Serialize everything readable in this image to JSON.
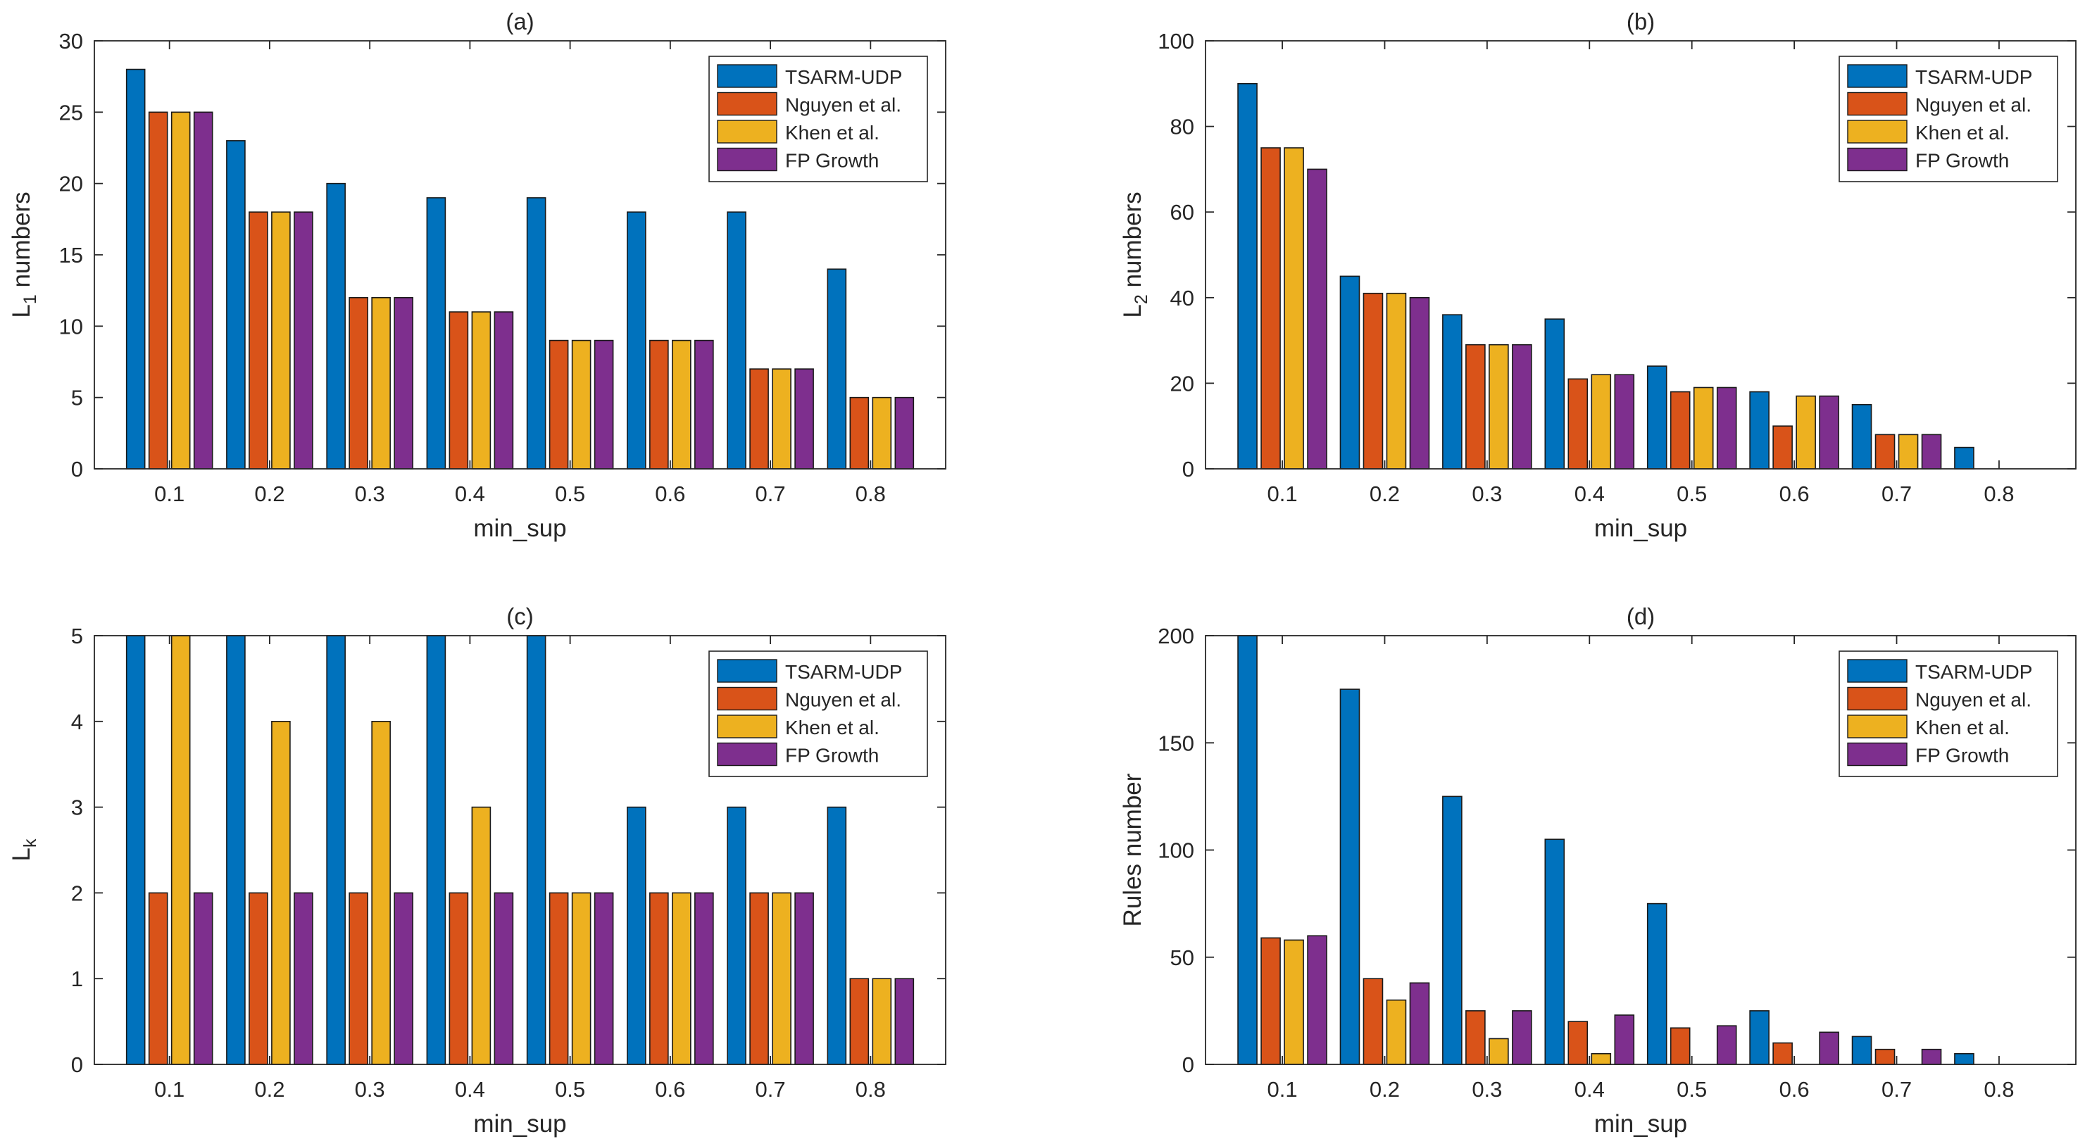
{
  "colors": {
    "tsarm": "#0072BD",
    "nguyen": "#D95319",
    "khen": "#EDB120",
    "fpg": "#7E2F8E"
  },
  "chart_data": [
    {
      "type": "bar",
      "title": "(a)",
      "xlabel": "min_sup",
      "ylabel_main": "L",
      "ylabel_sub": "1",
      "ylabel_rest": " numbers",
      "ylim": [
        0,
        30
      ],
      "yticks": [
        0,
        5,
        10,
        15,
        20,
        25,
        30
      ],
      "legend_position": "top-right",
      "categories": [
        "0.1",
        "0.2",
        "0.3",
        "0.4",
        "0.5",
        "0.6",
        "0.7",
        "0.8"
      ],
      "series": [
        {
          "name": "TSARM-UDP",
          "values": [
            28,
            23,
            20,
            19,
            19,
            18,
            18,
            14
          ]
        },
        {
          "name": "Nguyen et al.",
          "values": [
            25,
            18,
            12,
            11,
            9,
            9,
            7,
            5
          ]
        },
        {
          "name": "Khen et al.",
          "values": [
            25,
            18,
            12,
            11,
            9,
            9,
            7,
            5
          ]
        },
        {
          "name": "FP Growth",
          "values": [
            25,
            18,
            12,
            11,
            9,
            9,
            7,
            5
          ]
        }
      ]
    },
    {
      "type": "bar",
      "title": "(b)",
      "xlabel": "min_sup",
      "ylabel_main": "L",
      "ylabel_sub": "2",
      "ylabel_rest": " numbers",
      "ylim": [
        0,
        100
      ],
      "yticks": [
        0,
        20,
        40,
        60,
        80,
        100
      ],
      "legend_position": "top-right",
      "categories": [
        "0.1",
        "0.2",
        "0.3",
        "0.4",
        "0.5",
        "0.6",
        "0.7",
        "0.8"
      ],
      "series": [
        {
          "name": "TSARM-UDP",
          "values": [
            90,
            45,
            36,
            35,
            24,
            18,
            15,
            5
          ]
        },
        {
          "name": "Nguyen et al.",
          "values": [
            75,
            41,
            29,
            21,
            18,
            10,
            8,
            0
          ]
        },
        {
          "name": "Khen et al.",
          "values": [
            75,
            41,
            29,
            22,
            19,
            17,
            8,
            0
          ]
        },
        {
          "name": "FP Growth",
          "values": [
            70,
            40,
            29,
            22,
            19,
            17,
            8,
            0
          ]
        }
      ]
    },
    {
      "type": "bar",
      "title": "(c)",
      "xlabel": "min_sup",
      "ylabel_main": "L",
      "ylabel_sub": "k",
      "ylabel_rest": "",
      "ylim": [
        0,
        5
      ],
      "yticks": [
        0,
        1,
        2,
        3,
        4,
        5
      ],
      "legend_position": "top-right",
      "categories": [
        "0.1",
        "0.2",
        "0.3",
        "0.4",
        "0.5",
        "0.6",
        "0.7",
        "0.8"
      ],
      "series": [
        {
          "name": "TSARM-UDP",
          "values": [
            5,
            5,
            5,
            5,
            5,
            3,
            3,
            3
          ]
        },
        {
          "name": "Nguyen et al.",
          "values": [
            2,
            2,
            2,
            2,
            2,
            2,
            2,
            1
          ]
        },
        {
          "name": "Khen et al.",
          "values": [
            5,
            4,
            4,
            3,
            2,
            2,
            2,
            1
          ]
        },
        {
          "name": "FP Growth",
          "values": [
            2,
            2,
            2,
            2,
            2,
            2,
            2,
            1
          ]
        }
      ]
    },
    {
      "type": "bar",
      "title": "(d)",
      "xlabel": "min_sup",
      "ylabel_main": "Rules number",
      "ylabel_sub": "",
      "ylabel_rest": "",
      "ylim": [
        0,
        200
      ],
      "yticks": [
        0,
        50,
        100,
        150,
        200
      ],
      "legend_position": "top-right",
      "categories": [
        "0.1",
        "0.2",
        "0.3",
        "0.4",
        "0.5",
        "0.6",
        "0.7",
        "0.8"
      ],
      "series": [
        {
          "name": "TSARM-UDP",
          "values": [
            200,
            175,
            125,
            105,
            75,
            25,
            13,
            5
          ]
        },
        {
          "name": "Nguyen et al.",
          "values": [
            59,
            40,
            25,
            20,
            17,
            10,
            7,
            0
          ]
        },
        {
          "name": "Khen et al.",
          "values": [
            58,
            30,
            12,
            5,
            0,
            0,
            0,
            0
          ]
        },
        {
          "name": "FP Growth",
          "values": [
            60,
            38,
            25,
            23,
            18,
            15,
            7,
            0
          ]
        }
      ]
    }
  ]
}
